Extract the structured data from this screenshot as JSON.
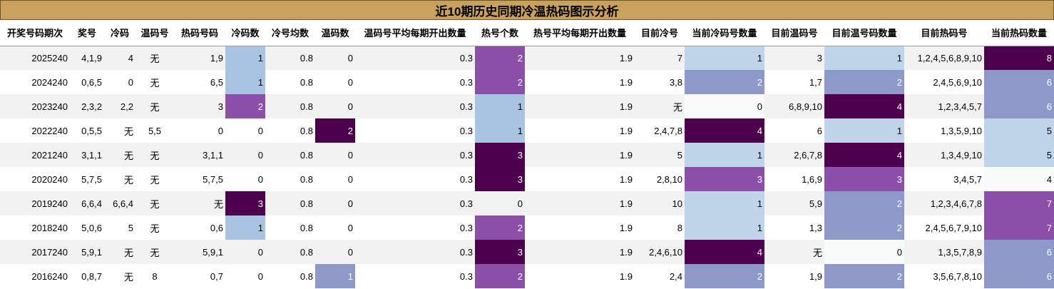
{
  "title": "近10期历史同期冷温热码图示分析",
  "colors": {
    "header_bg": "#c8a15c",
    "row_alt": "#f2f2f2",
    "pale_blue": "#bfd4e8",
    "light_blue": "#a9c4e0",
    "pale_mint": "#f7fcfb",
    "med_purple": "#8e99c9",
    "violet": "#8b4fa8",
    "dark_purple": "#4d004b"
  },
  "columns": [
    "开奖号码期次",
    "奖号",
    "冷码",
    "温码号",
    "热码号码",
    "冷码数",
    "冷号均数",
    "温码数",
    "温码号平均每期开出数量",
    "热号个数",
    "热号平均每期开出数量",
    "目前冷号",
    "当前冷码号数量",
    "目前温码号",
    "目前温号码数量",
    "目前热码号",
    "当前热码数量"
  ],
  "rows": [
    {
      "issue": "2025240",
      "prize": "4,1,9",
      "cold": "4",
      "warm": "无",
      "hot": "1,9",
      "cold_cnt": "1",
      "cold_avg": "0.8",
      "warm_cnt": "0",
      "warm_avg": "0.3",
      "hot_cnt": "2",
      "hot_avg": "1.9",
      "cur_cold": "7",
      "cur_cold_cnt": "1",
      "cur_warm": "3",
      "cur_warm_cnt": "1",
      "cur_hot": "1,2,4,5,6,8,9,10",
      "cur_hot_cnt": "8"
    },
    {
      "issue": "2024240",
      "prize": "0,6,5",
      "cold": "0",
      "warm": "无",
      "hot": "6,5",
      "cold_cnt": "1",
      "cold_avg": "0.8",
      "warm_cnt": "0",
      "warm_avg": "0.3",
      "hot_cnt": "2",
      "hot_avg": "1.9",
      "cur_cold": "3,8",
      "cur_cold_cnt": "2",
      "cur_warm": "1,7",
      "cur_warm_cnt": "2",
      "cur_hot": "2,4,5,6,9,10",
      "cur_hot_cnt": "6"
    },
    {
      "issue": "2023240",
      "prize": "2,3,2",
      "cold": "2,2",
      "warm": "无",
      "hot": "3",
      "cold_cnt": "2",
      "cold_avg": "0.8",
      "warm_cnt": "0",
      "warm_avg": "0.3",
      "hot_cnt": "1",
      "hot_avg": "1.9",
      "cur_cold": "无",
      "cur_cold_cnt": "0",
      "cur_warm": "6,8,9,10",
      "cur_warm_cnt": "4",
      "cur_hot": "1,2,3,4,5,7",
      "cur_hot_cnt": "6"
    },
    {
      "issue": "2022240",
      "prize": "0,5,5",
      "cold": "无",
      "warm": "5,5",
      "hot": "0",
      "cold_cnt": "0",
      "cold_avg": "0.8",
      "warm_cnt": "2",
      "warm_avg": "0.3",
      "hot_cnt": "1",
      "hot_avg": "1.9",
      "cur_cold": "2,4,7,8",
      "cur_cold_cnt": "4",
      "cur_warm": "6",
      "cur_warm_cnt": "1",
      "cur_hot": "1,3,5,9,10",
      "cur_hot_cnt": "5"
    },
    {
      "issue": "2021240",
      "prize": "3,1,1",
      "cold": "无",
      "warm": "无",
      "hot": "3,1,1",
      "cold_cnt": "0",
      "cold_avg": "0.8",
      "warm_cnt": "0",
      "warm_avg": "0.3",
      "hot_cnt": "3",
      "hot_avg": "1.9",
      "cur_cold": "5",
      "cur_cold_cnt": "1",
      "cur_warm": "2,6,7,8",
      "cur_warm_cnt": "4",
      "cur_hot": "1,3,4,9,10",
      "cur_hot_cnt": "5"
    },
    {
      "issue": "2020240",
      "prize": "5,7,5",
      "cold": "无",
      "warm": "无",
      "hot": "5,7,5",
      "cold_cnt": "0",
      "cold_avg": "0.8",
      "warm_cnt": "0",
      "warm_avg": "0.3",
      "hot_cnt": "3",
      "hot_avg": "1.9",
      "cur_cold": "2,8,10",
      "cur_cold_cnt": "3",
      "cur_warm": "1,6,9",
      "cur_warm_cnt": "3",
      "cur_hot": "3,4,5,7",
      "cur_hot_cnt": "4"
    },
    {
      "issue": "2019240",
      "prize": "6,6,4",
      "cold": "6,6,4",
      "warm": "无",
      "hot": "无",
      "cold_cnt": "3",
      "cold_avg": "0.8",
      "warm_cnt": "0",
      "warm_avg": "0.3",
      "hot_cnt": "0",
      "hot_avg": "1.9",
      "cur_cold": "10",
      "cur_cold_cnt": "1",
      "cur_warm": "5,9",
      "cur_warm_cnt": "2",
      "cur_hot": "1,2,3,4,6,7,8",
      "cur_hot_cnt": "7"
    },
    {
      "issue": "2018240",
      "prize": "5,0,6",
      "cold": "5",
      "warm": "无",
      "hot": "0,6",
      "cold_cnt": "1",
      "cold_avg": "0.8",
      "warm_cnt": "0",
      "warm_avg": "0.3",
      "hot_cnt": "2",
      "hot_avg": "1.9",
      "cur_cold": "8",
      "cur_cold_cnt": "1",
      "cur_warm": "1,3",
      "cur_warm_cnt": "2",
      "cur_hot": "2,4,5,6,7,9,10",
      "cur_hot_cnt": "7"
    },
    {
      "issue": "2017240",
      "prize": "5,9,1",
      "cold": "无",
      "warm": "无",
      "hot": "5,9,1",
      "cold_cnt": "0",
      "cold_avg": "0.8",
      "warm_cnt": "0",
      "warm_avg": "0.3",
      "hot_cnt": "3",
      "hot_avg": "1.9",
      "cur_cold": "2,4,6,10",
      "cur_cold_cnt": "4",
      "cur_warm": "无",
      "cur_warm_cnt": "0",
      "cur_hot": "1,3,5,7,8,9",
      "cur_hot_cnt": "6"
    },
    {
      "issue": "2016240",
      "prize": "0,8,7",
      "cold": "无",
      "warm": "8",
      "hot": "0,7",
      "cold_cnt": "0",
      "cold_avg": "0.8",
      "warm_cnt": "1",
      "warm_avg": "0.3",
      "hot_cnt": "2",
      "hot_avg": "1.9",
      "cur_cold": "2,4",
      "cur_cold_cnt": "2",
      "cur_warm": "1,9",
      "cur_warm_cnt": "2",
      "cur_hot": "3,5,6,7,8,10",
      "cur_hot_cnt": "6"
    }
  ]
}
